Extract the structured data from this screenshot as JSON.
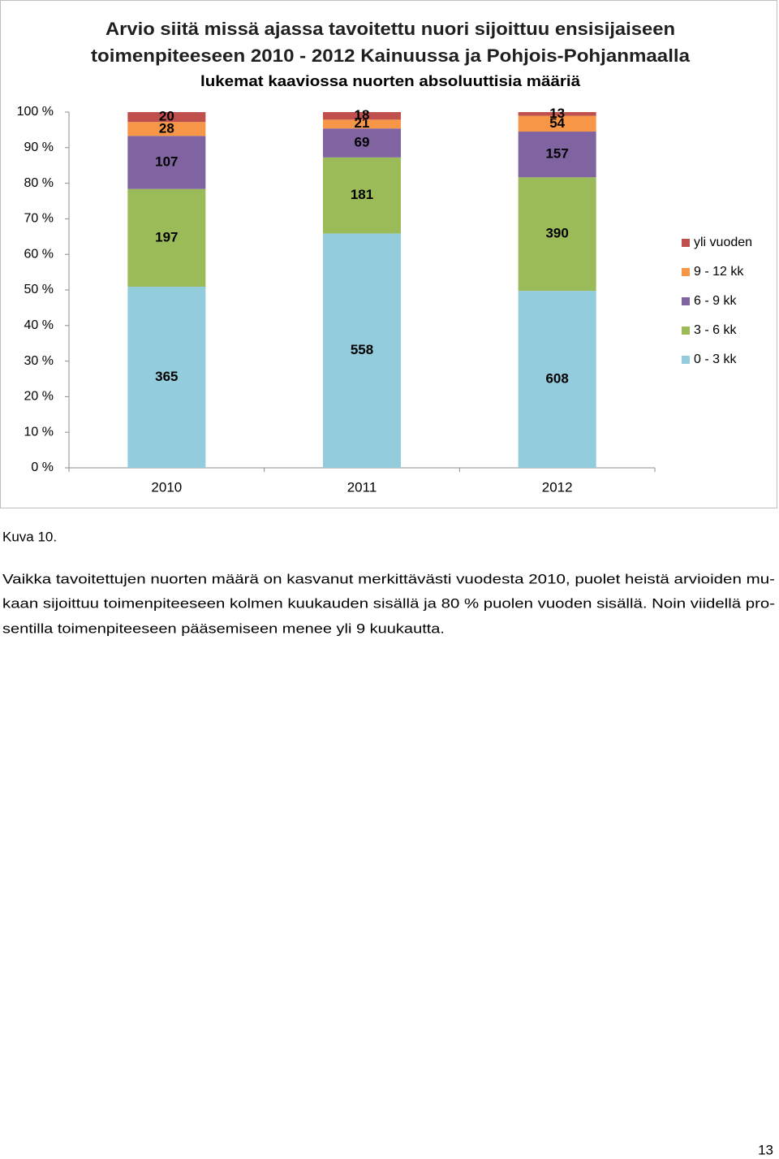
{
  "chart_data": {
    "type": "bar",
    "stacking": "percent",
    "title": "Arvio siitä missä ajassa tavoitettu nuori sijoittuu ensisijaiseen",
    "title_line2": "toimenpiteeseen 2010 - 2012 Kainuussa ja Pohjois-Pohjanmaalla",
    "subtitle": "lukemat kaaviossa nuorten absoluuttisia määriä",
    "categories": [
      "2010",
      "2011",
      "2012"
    ],
    "series": [
      {
        "name": "0 - 3 kk",
        "color": "#93cddd",
        "values": [
          365,
          558,
          608
        ]
      },
      {
        "name": "3 - 6 kk",
        "color": "#9bbb59",
        "values": [
          197,
          181,
          390
        ]
      },
      {
        "name": "6 - 9 kk",
        "color": "#8064a2",
        "values": [
          107,
          69,
          157
        ]
      },
      {
        "name": "9 - 12 kk",
        "color": "#f79646",
        "values": [
          28,
          21,
          54
        ]
      },
      {
        "name": "yli vuoden",
        "color": "#c0504d",
        "values": [
          20,
          18,
          13
        ]
      }
    ],
    "ylim": [
      0,
      100
    ],
    "yticks": [
      {
        "value": 0,
        "label": "0 %"
      },
      {
        "value": 10,
        "label": "10 %"
      },
      {
        "value": 20,
        "label": "20 %"
      },
      {
        "value": 30,
        "label": "30 %"
      },
      {
        "value": 40,
        "label": "40 %"
      },
      {
        "value": 50,
        "label": "50 %"
      },
      {
        "value": 60,
        "label": "60 %"
      },
      {
        "value": 70,
        "label": "70 %"
      },
      {
        "value": 80,
        "label": "80 %"
      },
      {
        "value": 90,
        "label": "90 %"
      },
      {
        "value": 100,
        "label": "100 %"
      }
    ],
    "grid": false,
    "legend": "right"
  },
  "caption": "Kuva 10.",
  "paragraph": [
    "Vaikka tavoitettujen nuorten määrä on kasvanut merkittävästi vuodesta 2010, puolet heistä arvioiden mu-",
    "kaan sijoittuu toimenpiteeseen kolmen kuukauden sisällä ja 80 % puolen vuoden sisällä. Noin viidellä pro-",
    "sentilla toimenpiteeseen pääsemiseen menee yli 9 kuukautta."
  ],
  "page_number": "13"
}
